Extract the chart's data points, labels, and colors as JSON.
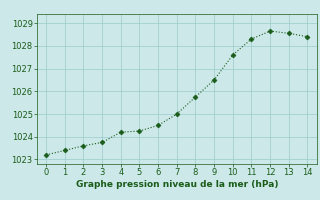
{
  "x": [
    0,
    1,
    2,
    3,
    4,
    5,
    6,
    7,
    8,
    9,
    10,
    11,
    12,
    13,
    14
  ],
  "y": [
    1023.2,
    1023.4,
    1023.6,
    1023.75,
    1024.2,
    1024.25,
    1024.5,
    1025.0,
    1025.75,
    1026.5,
    1027.6,
    1028.3,
    1028.65,
    1028.55,
    1028.4
  ],
  "xlim": [
    -0.5,
    14.5
  ],
  "ylim": [
    1022.8,
    1029.4
  ],
  "yticks": [
    1023,
    1024,
    1025,
    1026,
    1027,
    1028,
    1029
  ],
  "xticks": [
    0,
    1,
    2,
    3,
    4,
    5,
    6,
    7,
    8,
    9,
    10,
    11,
    12,
    13,
    14
  ],
  "line_color": "#1a5c1a",
  "marker_color": "#1a5c1a",
  "bg_color": "#cce8e8",
  "grid_color": "#99cccc",
  "xlabel": "Graphe pression niveau de la mer (hPa)",
  "xlabel_color": "#1a5c1a",
  "tick_color": "#1a5c1a",
  "xlabel_fontsize": 6.5,
  "tick_fontsize": 6.0,
  "line_width": 0.8,
  "marker_size": 2.5
}
